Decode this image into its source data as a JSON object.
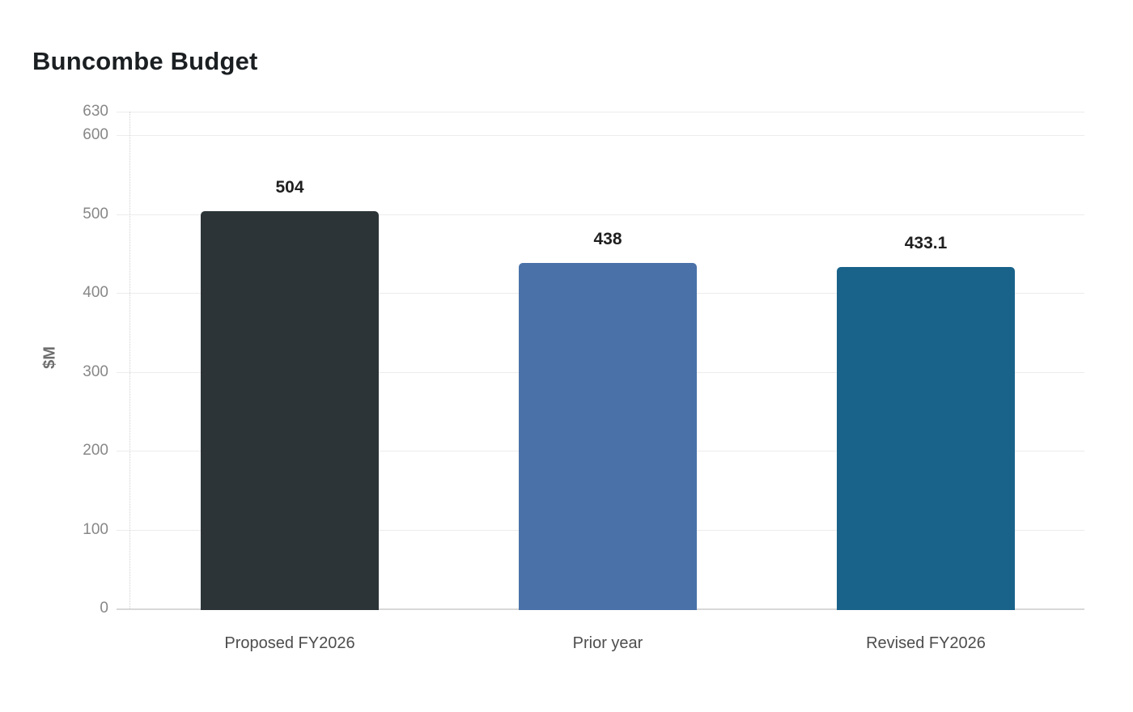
{
  "page": {
    "background": "#ffffff"
  },
  "chart_data": {
    "type": "bar",
    "title": "Buncombe Budget",
    "xlabel": "",
    "ylabel": "$M",
    "ylim": [
      0,
      630
    ],
    "yticks": [
      630,
      600,
      500,
      400,
      300,
      200,
      100,
      0
    ],
    "grid": true,
    "legend": false,
    "categories": [
      "Proposed FY2026",
      "Prior year",
      "Revised FY2026"
    ],
    "values": [
      504,
      438,
      433.1
    ],
    "value_labels": [
      "504",
      "438",
      "433.1"
    ],
    "bar_colors": [
      "#2c3437",
      "#4a72a8",
      "#19638a"
    ],
    "style": {
      "grid_color": "#ececec",
      "baseline_color": "#d8d8d8",
      "axis_dotted_color": "#cfcfcf",
      "tick_label_color": "#878787",
      "category_label_color": "#4d4d4d",
      "value_label_color": "#1f1f1f",
      "title_color": "#1b1f22",
      "ylabel_color": "#6e6e6e"
    }
  }
}
